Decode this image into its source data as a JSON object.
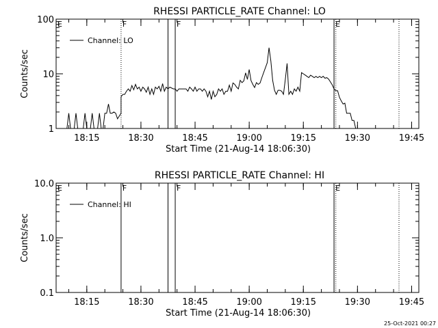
{
  "chart_data": [
    {
      "type": "line",
      "title": "RHESSI PARTICLE_RATE Channel: LO",
      "xlabel": "Start Time (21-Aug-14 18:06:30)",
      "ylabel": "Counts/sec",
      "yscale": "log",
      "ylim": [
        1,
        100
      ],
      "yticks": [
        "1",
        "10",
        "100"
      ],
      "xlim": [
        "18:06:30",
        "19:47:00"
      ],
      "xticks": [
        "18:15",
        "18:30",
        "18:45",
        "19:00",
        "19:15",
        "19:30",
        "19:45"
      ],
      "legend": {
        "label": "Channel: LO",
        "placement": "top-left"
      },
      "grid": false,
      "markers": [
        {
          "label": "E",
          "time": "18:06:30",
          "style": "dotted"
        },
        {
          "label": "F",
          "time": "18:24:30",
          "style": "dotted"
        },
        {
          "label": "",
          "time": "18:37:30",
          "style": "solid"
        },
        {
          "label": "F",
          "time": "18:39:30",
          "style": "solid"
        },
        {
          "label": "E",
          "time": "19:23:30",
          "style": "solid"
        },
        {
          "label": "",
          "time": "19:24:00",
          "style": "dotted"
        },
        {
          "label": "",
          "time": "19:41:30",
          "style": "dotted"
        }
      ],
      "series": [
        {
          "name": "Channel: LO",
          "points": [
            [
              "18:09:30",
              1
            ],
            [
              "18:10:00",
              1.9
            ],
            [
              "18:10:30",
              1
            ],
            [
              "18:11:30",
              1
            ],
            [
              "18:12:00",
              1.9
            ],
            [
              "18:12:30",
              1
            ],
            [
              "18:14:00",
              1
            ],
            [
              "18:14:30",
              1.9
            ],
            [
              "18:15:00",
              1
            ],
            [
              "18:16:00",
              1
            ],
            [
              "18:16:30",
              1.9
            ],
            [
              "18:17:00",
              1
            ],
            [
              "18:18:00",
              1
            ],
            [
              "18:18:30",
              1.9
            ],
            [
              "18:19:00",
              1
            ],
            [
              "18:19:30",
              1
            ],
            [
              "18:20:00",
              1.9
            ],
            [
              "18:20:30",
              1.9
            ],
            [
              "18:21:00",
              2.8
            ],
            [
              "18:21:30",
              1.9
            ],
            [
              "18:22:00",
              1.9
            ],
            [
              "18:22:30",
              2
            ],
            [
              "18:23:00",
              1.9
            ],
            [
              "18:23:30",
              1.5
            ],
            [
              "18:24:30",
              1.9
            ],
            [
              "18:24:30",
              3.8
            ],
            [
              "18:25:00",
              4.2
            ],
            [
              "18:25:30",
              4.2
            ],
            [
              "18:26:00",
              4.8
            ],
            [
              "18:26:30",
              5.3
            ],
            [
              "18:27:00",
              4.8
            ],
            [
              "18:27:30",
              6.1
            ],
            [
              "18:28:00",
              5.1
            ],
            [
              "18:28:30",
              6.4
            ],
            [
              "18:29:00",
              5.3
            ],
            [
              "18:29:30",
              5.7
            ],
            [
              "18:30:00",
              4.8
            ],
            [
              "18:30:30",
              5.7
            ],
            [
              "18:31:00",
              5.3
            ],
            [
              "18:31:30",
              4.6
            ],
            [
              "18:32:00",
              5.7
            ],
            [
              "18:32:30",
              4.2
            ],
            [
              "18:33:00",
              5.3
            ],
            [
              "18:33:30",
              4.2
            ],
            [
              "18:34:00",
              5.7
            ],
            [
              "18:34:30",
              5.3
            ],
            [
              "18:35:00",
              5.9
            ],
            [
              "18:35:30",
              4.8
            ],
            [
              "18:36:00",
              6.6
            ],
            [
              "18:36:30",
              4.8
            ],
            [
              "18:37:00",
              5.7
            ],
            [
              "18:37:30",
              5.3
            ],
            [
              "18:38:00",
              5.7
            ],
            [
              "18:39:00",
              5.3
            ],
            [
              "18:39:30",
              5.3
            ],
            [
              "18:40:00",
              4.8
            ],
            [
              "18:40:30",
              5.3
            ],
            [
              "18:41:00",
              5.3
            ],
            [
              "18:42:00",
              5.3
            ],
            [
              "18:42:30",
              5.3
            ],
            [
              "18:43:00",
              4.8
            ],
            [
              "18:43:30",
              5.7
            ],
            [
              "18:44:00",
              5.3
            ],
            [
              "18:44:30",
              4.8
            ],
            [
              "18:45:00",
              5.7
            ],
            [
              "18:45:30",
              4.8
            ],
            [
              "18:46:00",
              5.3
            ],
            [
              "18:46:30",
              5.3
            ],
            [
              "18:47:00",
              4.8
            ],
            [
              "18:47:30",
              5.3
            ],
            [
              "18:48:00",
              4.8
            ],
            [
              "18:48:30",
              3.8
            ],
            [
              "18:49:00",
              4.8
            ],
            [
              "18:49:30",
              3.4
            ],
            [
              "18:50:00",
              4.8
            ],
            [
              "18:50:30",
              3.8
            ],
            [
              "18:51:00",
              4.2
            ],
            [
              "18:51:30",
              5.3
            ],
            [
              "18:52:00",
              4.8
            ],
            [
              "18:52:30",
              5.3
            ],
            [
              "18:53:00",
              4.2
            ],
            [
              "18:53:30",
              4.8
            ],
            [
              "18:54:00",
              4.8
            ],
            [
              "18:54:30",
              6.2
            ],
            [
              "18:55:00",
              4.8
            ],
            [
              "18:55:30",
              6.8
            ],
            [
              "18:56:00",
              6.4
            ],
            [
              "18:56:30",
              5.7
            ],
            [
              "18:57:00",
              5.3
            ],
            [
              "18:57:30",
              7.6
            ],
            [
              "18:58:00",
              6.9
            ],
            [
              "18:58:30",
              7.4
            ],
            [
              "18:59:00",
              10.4
            ],
            [
              "18:59:30",
              7.9
            ],
            [
              "19:00:00",
              12
            ],
            [
              "19:00:30",
              7.5
            ],
            [
              "19:01:00",
              6.4
            ],
            [
              "19:01:30",
              5.6
            ],
            [
              "19:02:00",
              6.9
            ],
            [
              "19:02:30",
              6.4
            ],
            [
              "19:03:00",
              6.8
            ],
            [
              "19:03:30",
              8.5
            ],
            [
              "19:04:00",
              10.5
            ],
            [
              "19:04:30",
              13
            ],
            [
              "19:05:00",
              16
            ],
            [
              "19:05:30",
              30
            ],
            [
              "19:06:00",
              17
            ],
            [
              "19:06:30",
              7.6
            ],
            [
              "19:07:00",
              5
            ],
            [
              "19:07:30",
              4.2
            ],
            [
              "19:08:00",
              5
            ],
            [
              "19:08:30",
              5
            ],
            [
              "19:09:00",
              4.8
            ],
            [
              "19:09:30",
              4.2
            ],
            [
              "19:10:00",
              7.9
            ],
            [
              "19:10:30",
              15.5
            ],
            [
              "19:11:00",
              4.2
            ],
            [
              "19:11:30",
              4.8
            ],
            [
              "19:12:00",
              4.2
            ],
            [
              "19:12:30",
              5.3
            ],
            [
              "19:13:00",
              4.8
            ],
            [
              "19:13:30",
              5.7
            ],
            [
              "19:14:00",
              4.8
            ],
            [
              "19:14:30",
              10.5
            ],
            [
              "19:15:00",
              10
            ],
            [
              "19:15:30",
              9.5
            ],
            [
              "19:16:00",
              9
            ],
            [
              "19:16:30",
              8.5
            ],
            [
              "19:17:00",
              9.4
            ],
            [
              "19:17:30",
              9
            ],
            [
              "19:18:00",
              8.5
            ],
            [
              "19:18:30",
              9
            ],
            [
              "19:19:00",
              8.5
            ],
            [
              "19:19:30",
              9
            ],
            [
              "19:20:00",
              8.5
            ],
            [
              "19:20:30",
              9
            ],
            [
              "19:21:00",
              8.3
            ],
            [
              "19:21:30",
              8.5
            ],
            [
              "19:22:00",
              8
            ],
            [
              "19:22:30",
              7.1
            ],
            [
              "19:23:00",
              6.3
            ],
            [
              "19:23:30",
              5.3
            ],
            [
              "19:24:00",
              4.9
            ],
            [
              "19:24:30",
              4.9
            ],
            [
              "19:25:00",
              3.7
            ],
            [
              "19:25:30",
              3.2
            ],
            [
              "19:26:00",
              2.8
            ],
            [
              "19:26:30",
              2.9
            ],
            [
              "19:27:00",
              1.9
            ],
            [
              "19:27:30",
              1.9
            ],
            [
              "19:28:00",
              1.9
            ],
            [
              "19:28:30",
              1.4
            ],
            [
              "19:29:00",
              1.4
            ],
            [
              "19:29:30",
              1
            ]
          ]
        }
      ]
    },
    {
      "type": "line",
      "title": "RHESSI PARTICLE_RATE Channel: HI",
      "xlabel": "Start Time (21-Aug-14 18:06:30)",
      "ylabel": "Counts/sec",
      "yscale": "log",
      "ylim": [
        0.1,
        10.0
      ],
      "yticks": [
        "0.1",
        "1.0",
        "10.0"
      ],
      "xlim": [
        "18:06:30",
        "19:47:00"
      ],
      "xticks": [
        "18:15",
        "18:30",
        "18:45",
        "19:00",
        "19:15",
        "19:30",
        "19:45"
      ],
      "legend": {
        "label": "Channel: HI",
        "placement": "top-left"
      },
      "grid": false,
      "markers": [
        {
          "label": "E",
          "time": "18:06:30",
          "style": "dotted"
        },
        {
          "label": "F",
          "time": "18:24:30",
          "style": "solid"
        },
        {
          "label": "",
          "time": "18:37:30",
          "style": "solid"
        },
        {
          "label": "F",
          "time": "18:39:30",
          "style": "solid"
        },
        {
          "label": "E",
          "time": "19:23:30",
          "style": "solid"
        },
        {
          "label": "",
          "time": "19:24:00",
          "style": "dotted"
        },
        {
          "label": "",
          "time": "19:41:30",
          "style": "dotted"
        }
      ],
      "series": [
        {
          "name": "Channel: HI",
          "points": []
        }
      ]
    }
  ],
  "footer": {
    "timestamp": "25-Oct-2021 00:27"
  }
}
